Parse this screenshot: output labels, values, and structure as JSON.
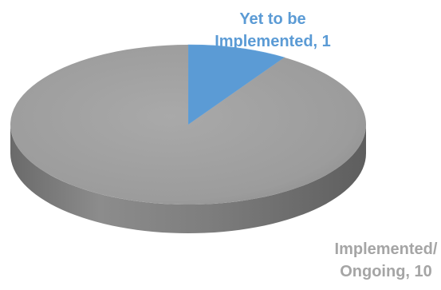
{
  "chart_data": {
    "type": "pie",
    "title": "",
    "categories": [
      "Yet to be Implemented",
      "Implemented/ Ongoing"
    ],
    "values": [
      1,
      10
    ],
    "colors": [
      "#5b9bd5",
      "#a5a5a5"
    ],
    "data_labels": [
      {
        "lines": [
          "Yet to be",
          "Implemented, 1"
        ],
        "color": "#5b9bd5"
      },
      {
        "lines": [
          "Implemented/",
          "Ongoing, 10"
        ],
        "color": "#a5a5a5"
      }
    ],
    "legend": "none",
    "style": "3d"
  }
}
